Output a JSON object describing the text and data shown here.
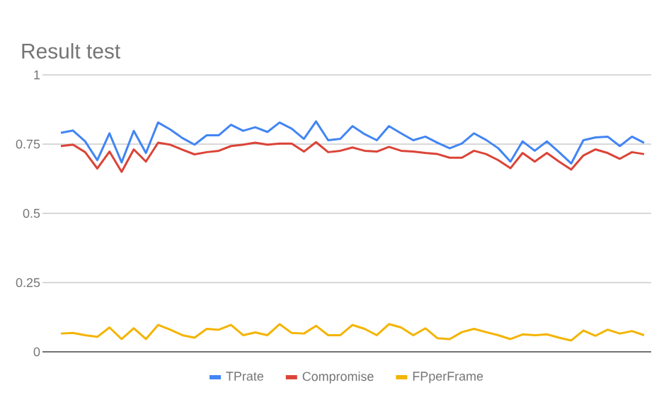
{
  "chart_data": {
    "type": "line",
    "title": "Result test",
    "categories": [
      null,
      null,
      null,
      null,
      null,
      null,
      null,
      null,
      null,
      null,
      null,
      null,
      null,
      null,
      null,
      null,
      null,
      null,
      null,
      null,
      null,
      null,
      null,
      null,
      null,
      null,
      null,
      null,
      null,
      null,
      null,
      null,
      null,
      null,
      null,
      null,
      null,
      null,
      null,
      null,
      null,
      null,
      null,
      null,
      null,
      null,
      null,
      null,
      null
    ],
    "series": [
      {
        "name": "TPrate",
        "color": "#4285f4",
        "values": [
          0.791,
          0.799,
          0.76,
          0.692,
          0.789,
          0.684,
          0.798,
          0.718,
          0.828,
          0.803,
          0.772,
          0.748,
          0.782,
          0.782,
          0.82,
          0.798,
          0.811,
          0.794,
          0.828,
          0.806,
          0.769,
          0.832,
          0.764,
          0.769,
          0.815,
          0.786,
          0.764,
          0.815,
          0.789,
          0.764,
          0.777,
          0.755,
          0.735,
          0.752,
          0.789,
          0.765,
          0.735,
          0.687,
          0.76,
          0.726,
          0.76,
          0.721,
          0.68,
          0.764,
          0.774,
          0.777,
          0.743,
          0.777,
          0.755
        ]
      },
      {
        "name": "Compromise",
        "color": "#db4437",
        "values": [
          0.743,
          0.748,
          0.721,
          0.662,
          0.723,
          0.65,
          0.731,
          0.687,
          0.755,
          0.748,
          0.73,
          0.713,
          0.721,
          0.726,
          0.743,
          0.748,
          0.755,
          0.748,
          0.752,
          0.752,
          0.723,
          0.757,
          0.721,
          0.726,
          0.738,
          0.726,
          0.723,
          0.74,
          0.726,
          0.723,
          0.718,
          0.714,
          0.701,
          0.701,
          0.726,
          0.714,
          0.692,
          0.663,
          0.718,
          0.687,
          0.718,
          0.687,
          0.658,
          0.709,
          0.731,
          0.718,
          0.697,
          0.721,
          0.714
        ]
      },
      {
        "name": "FPperFrame",
        "color": "#f4b400",
        "values": [
          0.066,
          0.068,
          0.06,
          0.054,
          0.088,
          0.046,
          0.085,
          0.046,
          0.097,
          0.08,
          0.06,
          0.051,
          0.083,
          0.08,
          0.097,
          0.06,
          0.07,
          0.06,
          0.1,
          0.068,
          0.066,
          0.094,
          0.06,
          0.06,
          0.097,
          0.083,
          0.06,
          0.1,
          0.088,
          0.06,
          0.085,
          0.049,
          0.046,
          0.071,
          0.083,
          0.071,
          0.06,
          0.046,
          0.063,
          0.06,
          0.063,
          0.051,
          0.041,
          0.077,
          0.058,
          0.08,
          0.066,
          0.075,
          0.06
        ]
      }
    ],
    "ylim": [
      0,
      1
    ],
    "yticks": [
      0,
      0.25,
      0.5,
      0.75,
      1
    ],
    "grid": "y",
    "legend": "bottom",
    "marker": "none",
    "line_style": "solid"
  }
}
